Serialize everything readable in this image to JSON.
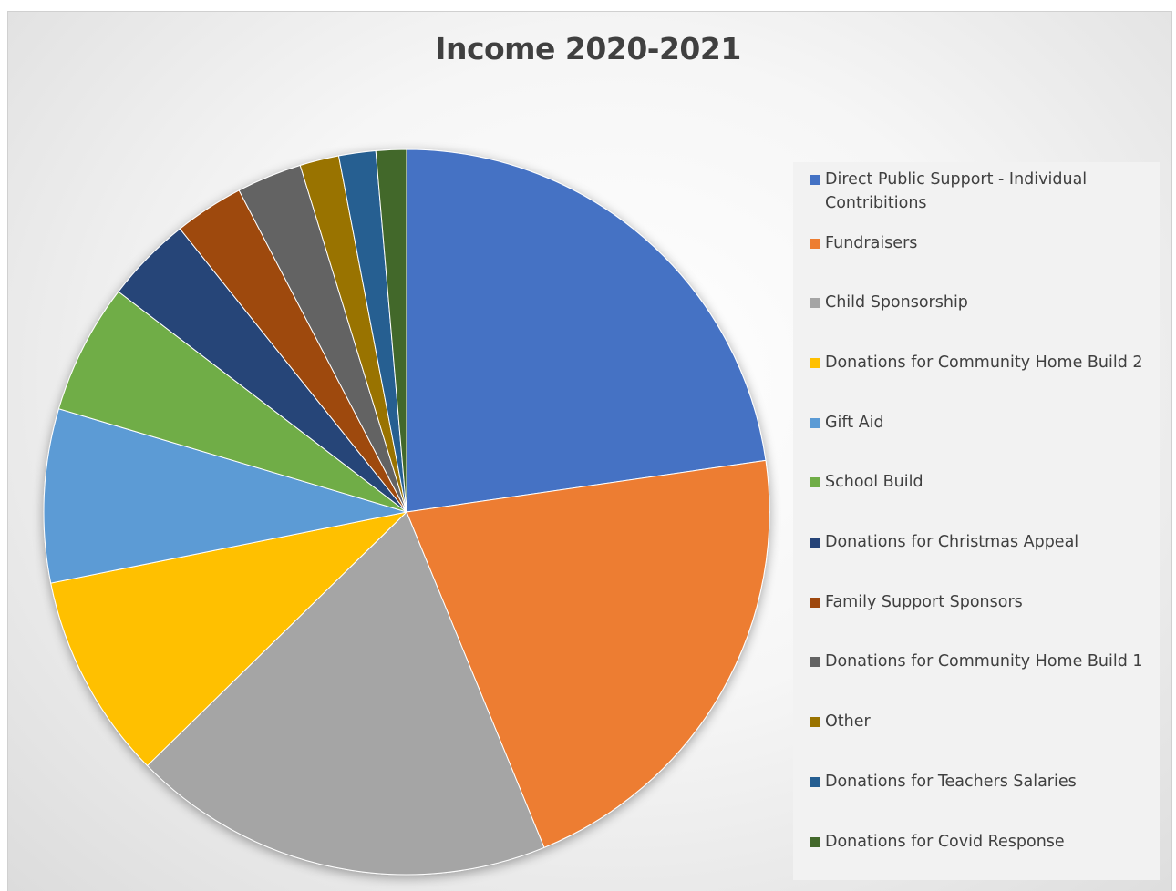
{
  "chart_data": {
    "type": "pie",
    "title": "Income 2020-2021",
    "legend_position": "right",
    "categories": [
      "Direct Public Support - Individual Contribitions",
      "Fundraisers",
      "Child Sponsorship",
      "Donations for Community Home Build 2",
      "Gift Aid",
      "School Build",
      "Donations for Christmas Appeal",
      "Family Support Sponsors",
      "Donations for Community Home Build 1",
      "Other",
      "Donations for Teachers Salaries",
      "Donations for Covid Response"
    ],
    "values": [
      23.5,
      21.8,
      19.5,
      9.5,
      8.0,
      6.0,
      4.0,
      3.2,
      3.0,
      1.8,
      1.7,
      1.4
    ],
    "colors": [
      "#4472c4",
      "#ed7d31",
      "#a5a5a5",
      "#ffc000",
      "#5b9bd5",
      "#70ad47",
      "#264478",
      "#9e480e",
      "#636363",
      "#997300",
      "#255e91",
      "#43682b"
    ]
  }
}
